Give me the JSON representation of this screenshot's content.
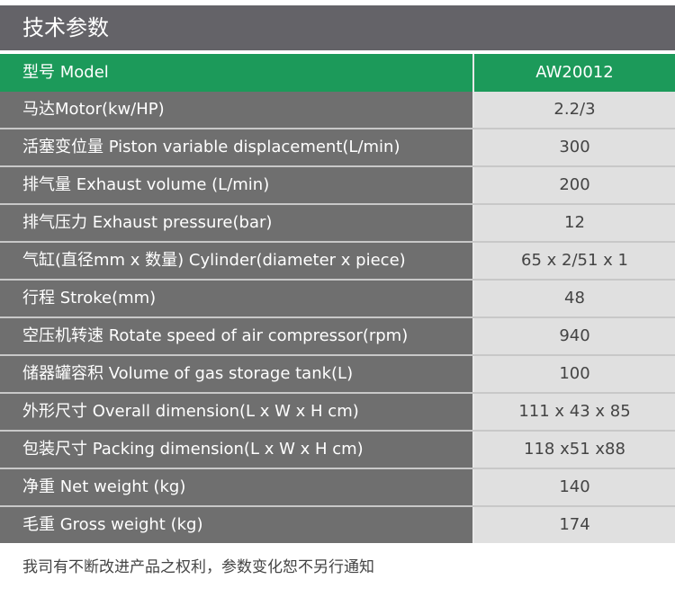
{
  "title": "技术参数",
  "model": {
    "label": "型号 Model",
    "value": "AW20012"
  },
  "rows": [
    {
      "label": "马达Motor(kw/HP)",
      "value": "2.2/3"
    },
    {
      "label": "活塞变位量 Piston variable displacement(L/min)",
      "value": "300"
    },
    {
      "label": "排气量 Exhaust volume (L/min)",
      "value": "200"
    },
    {
      "label": "排气压力 Exhaust pressure(bar)",
      "value": "12"
    },
    {
      "label": "气缸(直径mm x 数量) Cylinder(diameter x piece)",
      "value": "65 x 2/51 x 1"
    },
    {
      "label": "行程 Stroke(mm)",
      "value": "48"
    },
    {
      "label": "空压机转速 Rotate speed of air compressor(rpm)",
      "value": "940"
    },
    {
      "label": "储器罐容积 Volume of gas storage tank(L)",
      "value": "100"
    },
    {
      "label": "外形尺寸 Overall dimension(L x W x H cm)",
      "value": "111 x 43 x 85"
    },
    {
      "label": "包装尺寸 Packing dimension(L x W x H cm)",
      "value": "118 x51 x88"
    },
    {
      "label": "净重 Net weight (kg)",
      "value": "140"
    },
    {
      "label": "毛重 Gross weight (kg)",
      "value": "174"
    }
  ],
  "footer": "我司有不断改进产品之权利，参数变化恕不另行通知",
  "colors": {
    "header": "#646368",
    "accent": "#1c9a5a",
    "label_bg": "#6f6f6f",
    "value_bg": "#e0e0e0"
  }
}
